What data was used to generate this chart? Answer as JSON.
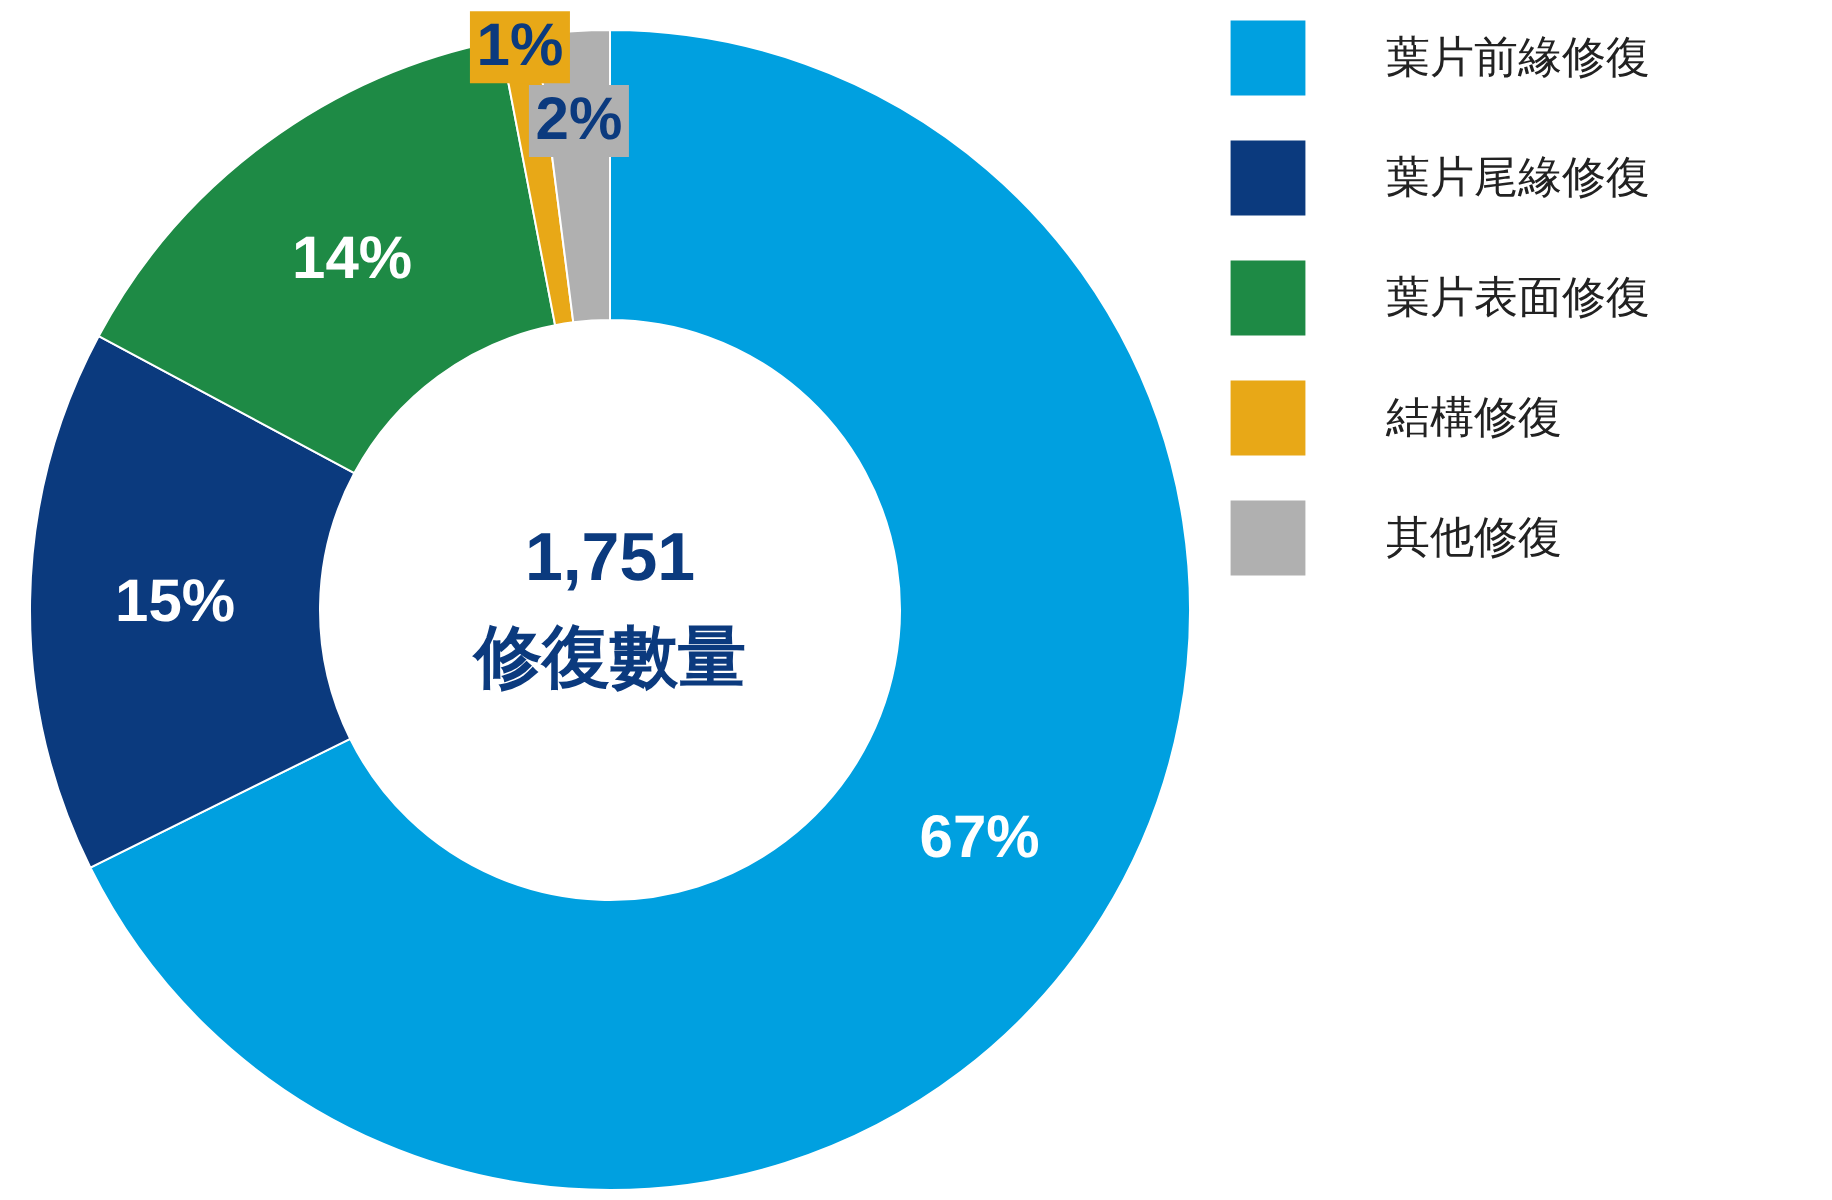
{
  "chart_data": {
    "type": "donut",
    "categories": [
      "葉片前緣修復",
      "葉片尾緣修復",
      "葉片表面修復",
      "結構修復",
      "其他修復"
    ],
    "values": [
      67,
      15,
      14,
      1,
      2
    ],
    "colors": [
      "#00a0e0",
      "#0b3a7e",
      "#1e8a45",
      "#e8a817",
      "#b0b0b0"
    ],
    "value_labels": [
      "67%",
      "15%",
      "14%",
      "1%",
      "2%"
    ],
    "annotations": [
      "1,751",
      "修復數量"
    ],
    "legend": "right"
  }
}
